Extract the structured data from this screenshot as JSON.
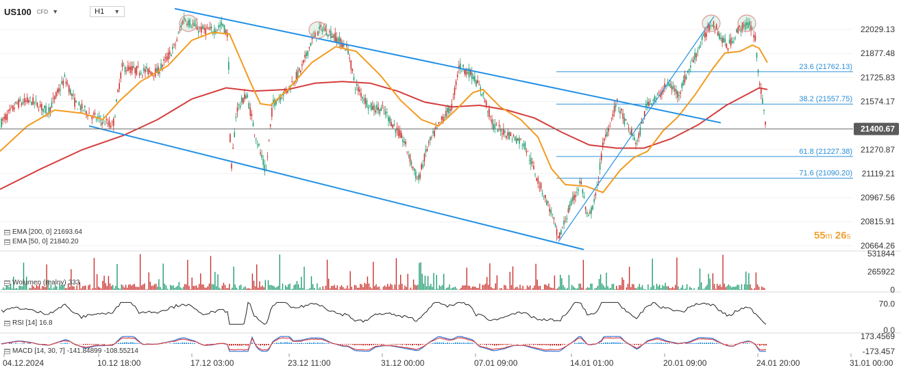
{
  "header": {
    "symbol": "US100",
    "instrument_type": "CFD",
    "timeframe": "H1"
  },
  "indicators": {
    "ema200": {
      "label": "EMA [200, 0]",
      "value": "21693.64",
      "color": "#d43c3c"
    },
    "ema50": {
      "label": "EMA [50, 0]",
      "value": "21840.20",
      "color": "#f29a1f"
    },
    "volume": {
      "label": "Wolumen (realny)",
      "value": "333"
    },
    "rsi": {
      "label": "RSI [14]",
      "value": "16.8"
    },
    "macd": {
      "label": "MACD [14, 30, 7]",
      "value1": "-141.84899",
      "value2": "-108.55214"
    }
  },
  "countdown": {
    "minutes": "55",
    "m_unit": "m",
    "seconds": "26",
    "s_unit": "s"
  },
  "current_price": "21400.67",
  "chart_data": {
    "type": "line",
    "y_ticks": [
      "22029.13",
      "21877.48",
      "21725.83",
      "21574.17",
      "21270.87",
      "21119.21",
      "20967.56",
      "20815.91",
      "20664.26"
    ],
    "x_ticks": [
      "04.12.2024",
      "10.12 18:00",
      "17.12 03:00",
      "23.12 11:00",
      "31.12 00:00",
      "07.01 09:00",
      "14.01 01:00",
      "20.01 09:00",
      "24.01 20:00",
      "31.01 00:00"
    ],
    "ylim": [
      20640,
      22180
    ],
    "fib_levels": [
      {
        "label": "23.6 (21762.13)",
        "value": 21762.13
      },
      {
        "label": "38.2 (21557.75)",
        "value": 21557.75
      },
      {
        "label": "61.8 (21227.38)",
        "value": 21227.38
      },
      {
        "label": "71.6 (21090.20)",
        "value": 21090.2
      }
    ],
    "price_path": [
      [
        0,
        21430
      ],
      [
        25,
        21560
      ],
      [
        45,
        21580
      ],
      [
        70,
        21510
      ],
      [
        95,
        21720
      ],
      [
        110,
        21560
      ],
      [
        140,
        21470
      ],
      [
        165,
        21420
      ],
      [
        178,
        21790
      ],
      [
        200,
        21770
      ],
      [
        230,
        21760
      ],
      [
        255,
        21920
      ],
      [
        268,
        22100
      ],
      [
        290,
        22030
      ],
      [
        310,
        22020
      ],
      [
        325,
        22060
      ],
      [
        333,
        21980
      ],
      [
        337,
        21100
      ],
      [
        345,
        21520
      ],
      [
        360,
        21620
      ],
      [
        372,
        21380
      ],
      [
        388,
        21120
      ],
      [
        398,
        21560
      ],
      [
        420,
        21650
      ],
      [
        440,
        21780
      ],
      [
        455,
        21960
      ],
      [
        470,
        22040
      ],
      [
        490,
        21980
      ],
      [
        508,
        21900
      ],
      [
        518,
        21680
      ],
      [
        540,
        21540
      ],
      [
        560,
        21520
      ],
      [
        590,
        21320
      ],
      [
        610,
        21070
      ],
      [
        625,
        21300
      ],
      [
        645,
        21460
      ],
      [
        660,
        21550
      ],
      [
        670,
        21800
      ],
      [
        690,
        21740
      ],
      [
        705,
        21620
      ],
      [
        720,
        21420
      ],
      [
        745,
        21360
      ],
      [
        765,
        21310
      ],
      [
        785,
        21080
      ],
      [
        805,
        20870
      ],
      [
        815,
        20700
      ],
      [
        830,
        20890
      ],
      [
        848,
        21070
      ],
      [
        858,
        20820
      ],
      [
        870,
        20980
      ],
      [
        880,
        21300
      ],
      [
        900,
        21570
      ],
      [
        915,
        21420
      ],
      [
        930,
        21310
      ],
      [
        945,
        21570
      ],
      [
        960,
        21600
      ],
      [
        975,
        21690
      ],
      [
        990,
        21620
      ],
      [
        1010,
        21820
      ],
      [
        1025,
        21960
      ],
      [
        1040,
        22080
      ],
      [
        1052,
        21980
      ],
      [
        1062,
        21920
      ],
      [
        1080,
        22040
      ],
      [
        1095,
        22060
      ],
      [
        1102,
        21980
      ],
      [
        1108,
        21720
      ],
      [
        1118,
        21400
      ]
    ],
    "ema50_path": [
      [
        0,
        21260
      ],
      [
        40,
        21420
      ],
      [
        80,
        21520
      ],
      [
        120,
        21500
      ],
      [
        150,
        21460
      ],
      [
        175,
        21580
      ],
      [
        205,
        21700
      ],
      [
        245,
        21800
      ],
      [
        280,
        21960
      ],
      [
        310,
        22010
      ],
      [
        335,
        22000
      ],
      [
        350,
        21850
      ],
      [
        365,
        21700
      ],
      [
        380,
        21560
      ],
      [
        395,
        21550
      ],
      [
        420,
        21650
      ],
      [
        455,
        21820
      ],
      [
        490,
        21920
      ],
      [
        520,
        21890
      ],
      [
        555,
        21740
      ],
      [
        585,
        21580
      ],
      [
        615,
        21460
      ],
      [
        640,
        21420
      ],
      [
        665,
        21520
      ],
      [
        690,
        21630
      ],
      [
        705,
        21650
      ],
      [
        730,
        21540
      ],
      [
        760,
        21460
      ],
      [
        785,
        21350
      ],
      [
        805,
        21150
      ],
      [
        825,
        21050
      ],
      [
        855,
        21040
      ],
      [
        880,
        21000
      ],
      [
        905,
        21140
      ],
      [
        925,
        21220
      ],
      [
        945,
        21260
      ],
      [
        968,
        21390
      ],
      [
        990,
        21480
      ],
      [
        1015,
        21620
      ],
      [
        1040,
        21780
      ],
      [
        1058,
        21880
      ],
      [
        1080,
        21890
      ],
      [
        1098,
        21930
      ],
      [
        1108,
        21910
      ],
      [
        1120,
        21820
      ]
    ],
    "ema200_path": [
      [
        0,
        21020
      ],
      [
        60,
        21150
      ],
      [
        120,
        21270
      ],
      [
        180,
        21360
      ],
      [
        230,
        21460
      ],
      [
        280,
        21590
      ],
      [
        330,
        21660
      ],
      [
        370,
        21640
      ],
      [
        420,
        21650
      ],
      [
        460,
        21690
      ],
      [
        500,
        21700
      ],
      [
        540,
        21690
      ],
      [
        580,
        21640
      ],
      [
        620,
        21570
      ],
      [
        660,
        21540
      ],
      [
        700,
        21550
      ],
      [
        740,
        21520
      ],
      [
        780,
        21470
      ],
      [
        820,
        21380
      ],
      [
        860,
        21300
      ],
      [
        900,
        21280
      ],
      [
        940,
        21280
      ],
      [
        980,
        21340
      ],
      [
        1020,
        21430
      ],
      [
        1060,
        21550
      ],
      [
        1095,
        21630
      ],
      [
        1108,
        21660
      ],
      [
        1120,
        21650
      ]
    ],
    "channel_upper": [
      [
        255,
        22160
      ],
      [
        1052,
        21440
      ]
    ],
    "channel_lower": [
      [
        130,
        21420
      ],
      [
        852,
        20640
      ]
    ],
    "uptrend_line": [
      [
        815,
        20690
      ],
      [
        1042,
        22110
      ]
    ],
    "highlighted_tops_x": [
      275,
      464,
      1038,
      1090
    ],
    "rsi_levels": [
      "70.0",
      "0.0"
    ],
    "volume_levels": [
      "531844",
      "265922",
      "0"
    ],
    "macd_levels": [
      "173.4569",
      "-173.457"
    ]
  }
}
